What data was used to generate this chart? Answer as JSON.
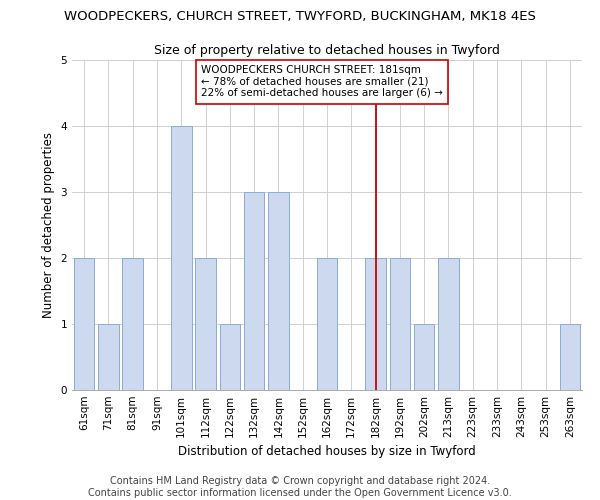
{
  "title": "WOODPECKERS, CHURCH STREET, TWYFORD, BUCKINGHAM, MK18 4ES",
  "subtitle": "Size of property relative to detached houses in Twyford",
  "xlabel": "Distribution of detached houses by size in Twyford",
  "ylabel": "Number of detached properties",
  "categories": [
    "61sqm",
    "71sqm",
    "81sqm",
    "91sqm",
    "101sqm",
    "112sqm",
    "122sqm",
    "132sqm",
    "142sqm",
    "152sqm",
    "162sqm",
    "172sqm",
    "182sqm",
    "192sqm",
    "202sqm",
    "213sqm",
    "223sqm",
    "233sqm",
    "243sqm",
    "253sqm",
    "263sqm"
  ],
  "values": [
    2,
    1,
    2,
    0,
    4,
    2,
    1,
    3,
    3,
    0,
    2,
    0,
    2,
    2,
    1,
    2,
    0,
    0,
    0,
    0,
    1
  ],
  "bar_color": "#ccd9ee",
  "bar_edgecolor": "#8aadd4",
  "vline_x": 12,
  "vline_color": "#cc0000",
  "annotation_line1": "WOODPECKERS CHURCH STREET: 181sqm",
  "annotation_line2": "← 78% of detached houses are smaller (21)",
  "annotation_line3": "22% of semi-detached houses are larger (6) →",
  "annotation_box_edgecolor": "#cc0000",
  "ylim": [
    0,
    5
  ],
  "yticks": [
    0,
    1,
    2,
    3,
    4,
    5
  ],
  "footer_line1": "Contains HM Land Registry data © Crown copyright and database right 2024.",
  "footer_line2": "Contains public sector information licensed under the Open Government Licence v3.0.",
  "bg_color": "#ffffff",
  "grid_color": "#d0d0d0",
  "title_fontsize": 9.5,
  "subtitle_fontsize": 9,
  "axis_label_fontsize": 8.5,
  "tick_fontsize": 7.5,
  "annotation_fontsize": 7.5,
  "footer_fontsize": 7.0
}
